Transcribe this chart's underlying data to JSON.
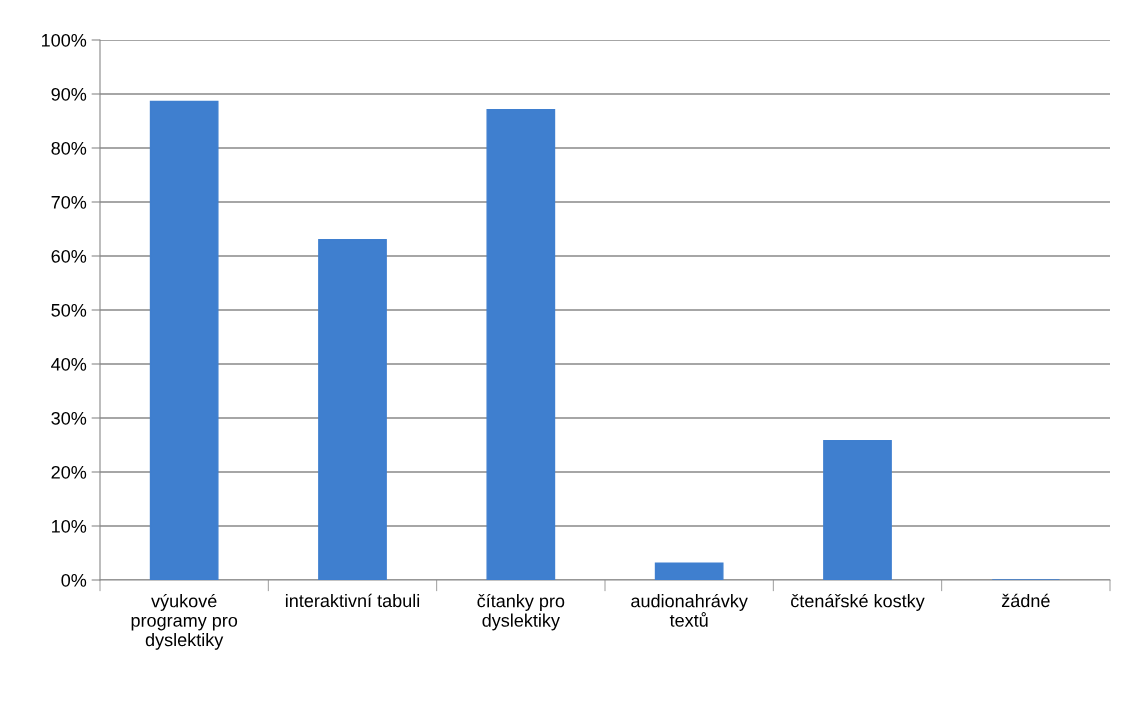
{
  "chart_data": {
    "type": "bar",
    "categories": [
      "výukové programy pro dyslektiky",
      "interaktivní tabuli",
      "čítanky pro dyslektiky",
      "audionahrávky textů",
      "čtenářské kostky",
      "žádné"
    ],
    "values": [
      88.6,
      63,
      87.1,
      3.1,
      25.8,
      0
    ],
    "color": "#3f7fcf",
    "ylim": [
      0,
      100
    ],
    "yticks": [
      {
        "value": 0,
        "label": "0%"
      },
      {
        "value": 10,
        "label": "10%"
      },
      {
        "value": 20,
        "label": "20%"
      },
      {
        "value": 30,
        "label": "30%"
      },
      {
        "value": 40,
        "label": "40%"
      },
      {
        "value": 50,
        "label": "50%"
      },
      {
        "value": 60,
        "label": "60%"
      },
      {
        "value": 70,
        "label": "70%"
      },
      {
        "value": 80,
        "label": "80%"
      },
      {
        "value": 90,
        "label": "90%"
      },
      {
        "value": 100,
        "label": "100%"
      }
    ],
    "grid": "y",
    "legend": false
  }
}
